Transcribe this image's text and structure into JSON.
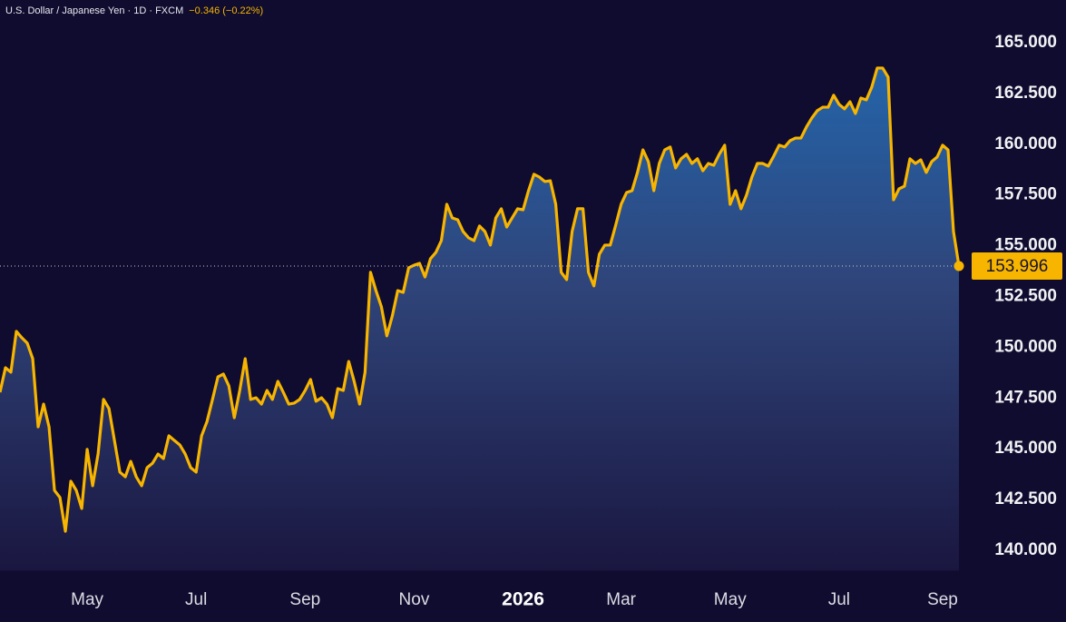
{
  "chart_data": {
    "type": "line",
    "title": "U.S. Dollar / Japanese Yen · 1D · FXCM",
    "change": "−0.346 (−0.22%)",
    "categories": [
      null,
      null,
      null,
      null,
      null,
      null,
      null,
      null,
      null,
      null,
      null,
      null,
      null,
      null,
      null,
      null,
      "May",
      null,
      null,
      null,
      null,
      null,
      null,
      null,
      null,
      null,
      null,
      null,
      null,
      null,
      null,
      null,
      null,
      null,
      null,
      null,
      "Jul",
      null,
      null,
      null,
      null,
      null,
      null,
      null,
      null,
      null,
      null,
      null,
      null,
      null,
      null,
      null,
      null,
      null,
      null,
      null,
      "Sep",
      null,
      null,
      null,
      null,
      null,
      null,
      null,
      null,
      null,
      null,
      null,
      null,
      null,
      null,
      null,
      null,
      null,
      null,
      null,
      "Nov",
      null,
      null,
      null,
      null,
      null,
      null,
      null,
      null,
      null,
      null,
      null,
      null,
      null,
      null,
      null,
      null,
      null,
      null,
      null,
      "2026",
      null,
      null,
      null,
      null,
      null,
      null,
      null,
      null,
      null,
      null,
      null,
      null,
      null,
      null,
      null,
      null,
      null,
      "Mar",
      null,
      null,
      null,
      null,
      null,
      null,
      null,
      null,
      null,
      null,
      null,
      null,
      null,
      null,
      null,
      null,
      null,
      null,
      null,
      "May",
      null,
      null,
      null,
      null,
      null,
      null,
      null,
      null,
      null,
      null,
      null,
      null,
      null,
      null,
      null,
      null,
      null,
      null,
      null,
      "Jul",
      null,
      null,
      null,
      null,
      null,
      null,
      null,
      null,
      null,
      null,
      null,
      null,
      null,
      null,
      null,
      null,
      null,
      null,
      "Sep",
      null,
      null,
      null
    ],
    "series": [
      {
        "name": "USD/JPY",
        "color": "#f7b500",
        "values": [
          147.78,
          148.99,
          148.77,
          150.78,
          150.47,
          150.2,
          149.44,
          146.08,
          147.2,
          146.08,
          142.95,
          142.6,
          140.94,
          143.4,
          142.95,
          142.06,
          144.97,
          143.18,
          144.74,
          147.43,
          146.98,
          145.41,
          143.85,
          143.62,
          144.38,
          143.62,
          143.18,
          144.07,
          144.29,
          144.74,
          144.52,
          145.64,
          145.41,
          145.19,
          144.74,
          144.07,
          143.85,
          145.64,
          146.35,
          147.43,
          148.54,
          148.68,
          148.1,
          146.53,
          147.87,
          149.44,
          147.43,
          147.51,
          147.2,
          147.87,
          147.43,
          148.32,
          147.78,
          147.2,
          147.25,
          147.43,
          147.87,
          148.41,
          147.34,
          147.51,
          147.2,
          146.53,
          147.96,
          147.87,
          149.3,
          148.32,
          147.2,
          148.77,
          153.69,
          152.79,
          151.99,
          150.56,
          151.54,
          152.79,
          152.7,
          153.91,
          154.04,
          154.13,
          153.46,
          154.36,
          154.67,
          155.25,
          157.04,
          156.37,
          156.28,
          155.7,
          155.39,
          155.25,
          155.97,
          155.7,
          155.03,
          156.37,
          156.82,
          155.92,
          156.37,
          156.82,
          156.77,
          157.71,
          158.52,
          158.38,
          158.16,
          158.2,
          157.04,
          153.69,
          153.33,
          155.7,
          156.82,
          156.82,
          153.69,
          153.02,
          154.58,
          155.03,
          155.03,
          156.01,
          157.04,
          157.62,
          157.71,
          158.61,
          159.72,
          159.14,
          157.71,
          159.05,
          159.72,
          159.86,
          158.83,
          159.28,
          159.5,
          159.05,
          159.28,
          158.69,
          159.05,
          158.96,
          159.5,
          159.95,
          157.04,
          157.71,
          156.82,
          157.49,
          158.38,
          159.05,
          159.05,
          158.92,
          159.41,
          159.95,
          159.86,
          160.17,
          160.3,
          160.3,
          160.84,
          161.29,
          161.65,
          161.82,
          161.82,
          162.41,
          161.96,
          161.74,
          162.09,
          161.51,
          162.27,
          162.18,
          162.81,
          163.75,
          163.75,
          163.3,
          157.26,
          157.8,
          157.93,
          159.28,
          159.05,
          159.23,
          158.61,
          159.14,
          159.37,
          159.95,
          159.72,
          155.7,
          153.996
        ]
      }
    ],
    "ylim": [
      139,
      166
    ],
    "yticks": [
      {
        "value": 140,
        "label": "140.000"
      },
      {
        "value": 142.5,
        "label": "142.500"
      },
      {
        "value": 145,
        "label": "145.000"
      },
      {
        "value": 147.5,
        "label": "147.500"
      },
      {
        "value": 150,
        "label": "150.000"
      },
      {
        "value": 152.5,
        "label": "152.500"
      },
      {
        "value": 155,
        "label": "155.000"
      },
      {
        "value": 157.5,
        "label": "157.500"
      },
      {
        "value": 160,
        "label": "160.000"
      },
      {
        "value": 162.5,
        "label": "162.500"
      },
      {
        "value": 165,
        "label": "165.000"
      }
    ],
    "grid": false
  }
}
